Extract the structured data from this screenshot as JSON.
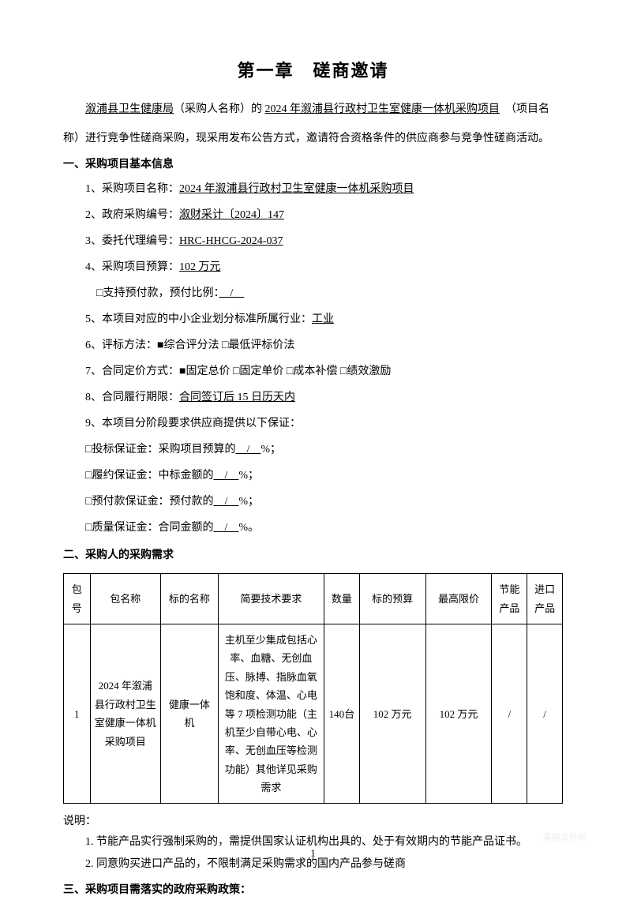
{
  "title": "第一章　磋商邀请",
  "intro": {
    "purchaser": "溆浦县卫生健康局",
    "purchaser_suffix": "（采购人名称）的",
    "project_name": "2024 年溆浦县行政村卫生室健康一体机采购项目",
    "project_suffix": "（项目名",
    "line2": "称）进行竞争性磋商采购，现采用发布公告方式，邀请符合资格条件的供应商参与竞争性磋商活动。"
  },
  "section1_title": "一、采购项目基本信息",
  "items": {
    "item1_label": "1、采购项目名称：",
    "item1_value": "2024 年溆浦县行政村卫生室健康一体机采购项目",
    "item2_label": "2、政府采购编号：",
    "item2_value": "溆财采计〔2024〕147",
    "item3_label": "3、委托代理编号：",
    "item3_value": "HRC-HHCG-2024-037",
    "item4_label": "4、采购项目预算：",
    "item4_value": "102 万元",
    "item4_sub": "□支持预付款，预付比例：",
    "item4_sub_value": "　/　",
    "item5_label": "5、本项目对应的中小企业划分标准所属行业：",
    "item5_value": "工业",
    "item6_label": "6、评标方法：■综合评分法 □最低评标价法",
    "item7_label": "7、合同定价方式：■固定总价 □固定单价 □成本补偿 □绩效激励",
    "item8_label": "8、合同履行期限：",
    "item8_value": "合同签订后 15 日历天内",
    "item9_label": "9、本项目分阶段要求供应商提供以下保证：",
    "guarantee1": "□投标保证金：采购项目预算的",
    "guarantee1_val": "　/　",
    "guarantee1_suffix": "%；",
    "guarantee2": "□履约保证金：中标金额的",
    "guarantee2_val": "　/　",
    "guarantee2_suffix": "%；",
    "guarantee3": "□预付款保证金：预付款的",
    "guarantee3_val": "　/　",
    "guarantee3_suffix": "%；",
    "guarantee4": "□质量保证金：合同金额的",
    "guarantee4_val": "　/　",
    "guarantee4_suffix": "%。"
  },
  "section2_title": "二、采购人的采购需求",
  "table": {
    "headers": {
      "h1": "包号",
      "h2": "包名称",
      "h3": "标的名称",
      "h4": "简要技术要求",
      "h5": "数量",
      "h6": "标的预算",
      "h7": "最高限价",
      "h8": "节能产品",
      "h9": "进口产品"
    },
    "row1": {
      "c1": "1",
      "c2": "2024 年溆浦县行政村卫生室健康一体机采购项目",
      "c3": "健康一体机",
      "c4": "主机至少集成包括心率、血糖、无创血压、脉搏、指脉血氧饱和度、体温、心电等 7 项检测功能（主机至少自带心电、心率、无创血压等检测功能）其他详见采购需求",
      "c5": "140台",
      "c6": "102 万元",
      "c7": "102 万元",
      "c8": "/",
      "c9": "/"
    }
  },
  "explanation": {
    "label": "说明：",
    "note1": "1. 节能产品实行强制采购的，需提供国家认证机构出具的、处于有效期内的节能产品证书。",
    "note2": "2. 同意购买进口产品的，不限制满足采购需求的国内产品参与磋商"
  },
  "section3_title": "三、采购项目需落实的政府采购政策：",
  "page_number": "1",
  "watermark": "采购文件网"
}
